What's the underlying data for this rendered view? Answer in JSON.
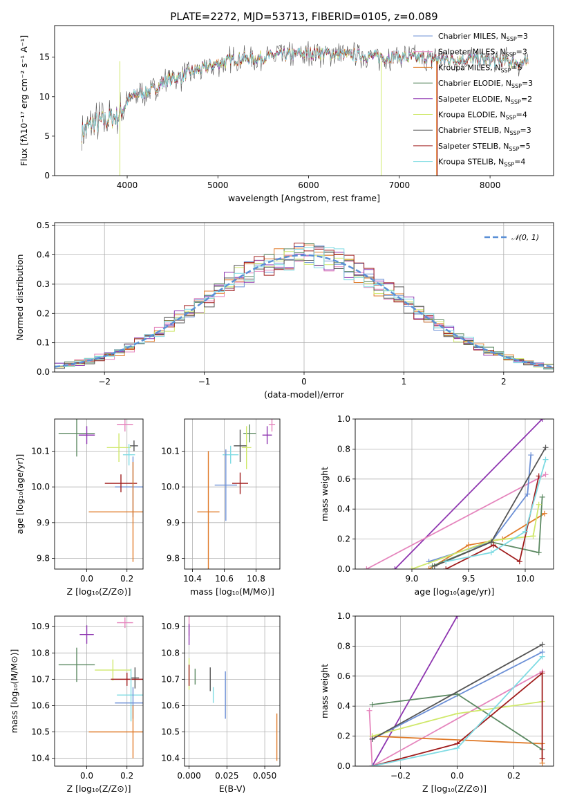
{
  "figure_title": "PLATE=2272, MJD=53713, FIBERID=0105, z=0.089",
  "colors": {
    "c1": "#6b8fd6",
    "c2": "#e585bd",
    "c3": "#e07b2a",
    "c4": "#5d8a63",
    "c5": "#8e35b0",
    "c6": "#cfe86a",
    "c7": "#555555",
    "c8": "#a01c1c",
    "c9": "#7fdbe3",
    "grid": "#b0b0b0",
    "gauss": "#5a8fd6"
  },
  "chart_data": [
    {
      "id": "spectrum",
      "type": "line",
      "title": "PLATE=2272, MJD=53713, FIBERID=0105, z=0.089",
      "xlabel": "wavelength [Angstrom, rest frame]",
      "ylabel": "Flux [fλ10⁻¹⁷ erg cm⁻² s⁻¹ A⁻¹]",
      "xlim": [
        3200,
        8700
      ],
      "ylim": [
        0,
        19
      ],
      "xticks": [
        4000,
        5000,
        6000,
        7000,
        8000
      ],
      "yticks": [
        0,
        5,
        10,
        15
      ],
      "grid": false,
      "legend_position": "top-right",
      "continuum": {
        "x": [
          3500,
          3600,
          3700,
          3800,
          3900,
          4000,
          4100,
          4200,
          4300,
          4400,
          4500,
          4600,
          4700,
          4800,
          4900,
          5000,
          5200,
          5400,
          5600,
          5800,
          6000,
          6200,
          6400,
          6600,
          6800,
          7000,
          7200,
          7400,
          7600,
          7800,
          8000,
          8200,
          8400
        ],
        "y": [
          5.5,
          6.5,
          6.8,
          7.2,
          7.5,
          9.5,
          10.3,
          10.6,
          11.0,
          11.8,
          12.3,
          12.5,
          13.2,
          13.4,
          13.8,
          14.2,
          14.8,
          14.8,
          15.2,
          15.3,
          15.5,
          15.5,
          15.3,
          15.2,
          15.0,
          15.0,
          14.9,
          14.8,
          14.7,
          14.8,
          14.6,
          14.5,
          14.2
        ]
      },
      "series": [
        {
          "name": "Chabrier MILES",
          "nssp": "3",
          "color": "c1"
        },
        {
          "name": "Salpeter MILES",
          "nssp": "3",
          "color": "c2"
        },
        {
          "name": "Kroupa MILES",
          "nssp": "5",
          "color": "c3"
        },
        {
          "name": "Chabrier ELODIE",
          "nssp": "3",
          "color": "c4"
        },
        {
          "name": "Salpeter ELODIE",
          "nssp": "2",
          "color": "c5"
        },
        {
          "name": "Kroupa ELODIE",
          "nssp": "4",
          "color": "c6"
        },
        {
          "name": "Chabrier STELIB",
          "nssp": "3",
          "color": "c7"
        },
        {
          "name": "Salpeter STELIB",
          "nssp": "5",
          "color": "c8"
        },
        {
          "name": "Kroupa STELIB",
          "nssp": "4",
          "color": "c9"
        }
      ]
    },
    {
      "id": "hist",
      "type": "line",
      "xlabel": "(data-model)/error",
      "ylabel": "Normed distribution",
      "xlim": [
        -2.5,
        2.5
      ],
      "ylim": [
        0,
        0.51
      ],
      "xticks": [
        -2,
        -1,
        0,
        1,
        2
      ],
      "yticks": [
        0.0,
        0.1,
        0.2,
        0.3,
        0.4,
        0.5
      ],
      "grid": true,
      "legend_position": "top-right",
      "legend_label": "𝒩(0, 1)",
      "gauss": {
        "mu": 0,
        "sigma": 1
      }
    },
    {
      "id": "age_Z",
      "type": "scatter",
      "xlabel": "Z [log₁₀(Z/Z⊙)]",
      "ylabel": "age  [log₁₀(age/yr)]",
      "xlim": [
        -0.16,
        0.28
      ],
      "ylim": [
        9.77,
        10.19
      ],
      "xticks": [
        0.0,
        0.2
      ],
      "yticks": [
        9.8,
        9.9,
        10.0,
        10.1
      ],
      "grid": true,
      "points": [
        {
          "color": "c4",
          "x": -0.05,
          "y": 10.15,
          "xerr": 0.09,
          "yerr": 0.065
        },
        {
          "color": "c5",
          "x": 0.0,
          "y": 10.145,
          "xerr": 0.04,
          "yerr": 0.025
        },
        {
          "color": "c2",
          "x": 0.19,
          "y": 10.175,
          "xerr": 0.04,
          "yerr": 0.02
        },
        {
          "color": "c6",
          "x": 0.16,
          "y": 10.11,
          "xerr": 0.06,
          "yerr": 0.04
        },
        {
          "color": "c9",
          "x": 0.21,
          "y": 10.09,
          "xerr": 0.03,
          "yerr": 0.03
        },
        {
          "color": "c7",
          "x": 0.235,
          "y": 10.115,
          "xerr": 0.02,
          "yerr": 0.015
        },
        {
          "color": "c1",
          "x": 0.23,
          "y": 10.0,
          "xerr": 0.09,
          "yerr": 0.085
        },
        {
          "color": "c8",
          "x": 0.17,
          "y": 10.01,
          "xerr": 0.08,
          "yerr": 0.025
        },
        {
          "color": "c3",
          "x": 0.23,
          "y": 9.93,
          "xerr": 0.22,
          "yerr": 0.14
        }
      ]
    },
    {
      "id": "age_mass",
      "type": "scatter",
      "xlabel": "mass [log₁₀(M/M⊙)]",
      "ylabel": "",
      "xlim": [
        10.35,
        10.95
      ],
      "ylim": [
        9.77,
        10.19
      ],
      "xticks": [
        10.4,
        10.6,
        10.8
      ],
      "yticks": [
        9.8,
        9.9,
        10.0,
        10.1
      ],
      "grid": true,
      "points": [
        {
          "color": "c2",
          "x": 10.9,
          "y": 10.175,
          "xerr": 0.02,
          "yerr": 0.02
        },
        {
          "color": "c5",
          "x": 10.87,
          "y": 10.145,
          "xerr": 0.03,
          "yerr": 0.025
        },
        {
          "color": "c4",
          "x": 10.76,
          "y": 10.15,
          "xerr": 0.04,
          "yerr": 0.025
        },
        {
          "color": "c6",
          "x": 10.74,
          "y": 10.11,
          "xerr": 0.03,
          "yerr": 0.06
        },
        {
          "color": "c9",
          "x": 10.64,
          "y": 10.09,
          "xerr": 0.05,
          "yerr": 0.025
        },
        {
          "color": "c7",
          "x": 10.7,
          "y": 10.115,
          "xerr": 0.04,
          "yerr": 0.045
        },
        {
          "color": "c1",
          "x": 10.61,
          "y": 10.005,
          "xerr": 0.07,
          "yerr": 0.1
        },
        {
          "color": "c8",
          "x": 10.7,
          "y": 10.01,
          "xerr": 0.05,
          "yerr": 0.03
        },
        {
          "color": "c3",
          "x": 10.5,
          "y": 9.93,
          "xerr": 0.07,
          "yerr": 0.17
        }
      ]
    },
    {
      "id": "weight_age",
      "type": "line",
      "xlabel": "age  [log₁₀(age/yr)]",
      "ylabel": "mass weight",
      "xlim": [
        8.5,
        10.25
      ],
      "ylim": [
        0,
        1
      ],
      "xticks": [
        9.0,
        9.5,
        10.0
      ],
      "yticks": [
        0.0,
        0.2,
        0.4,
        0.6,
        0.8,
        1.0
      ],
      "grid": true,
      "series": [
        {
          "color": "c5",
          "x": [
            8.85,
            10.15
          ],
          "y": [
            0.0,
            1.0
          ]
        },
        {
          "color": "c2",
          "x": [
            8.6,
            10.18
          ],
          "y": [
            0.0,
            0.63
          ]
        },
        {
          "color": "c1",
          "x": [
            9.15,
            9.7,
            10.02,
            10.05
          ],
          "y": [
            0.05,
            0.18,
            0.5,
            0.76
          ]
        },
        {
          "color": "c3",
          "x": [
            9.15,
            9.5,
            9.8,
            10.17
          ],
          "y": [
            0.0,
            0.16,
            0.2,
            0.37
          ]
        },
        {
          "color": "c4",
          "x": [
            9.18,
            9.7,
            10.12,
            10.15
          ],
          "y": [
            0.02,
            0.18,
            0.11,
            0.48
          ]
        },
        {
          "color": "c6",
          "x": [
            9.0,
            9.7,
            10.07,
            10.12
          ],
          "y": [
            0.0,
            0.19,
            0.22,
            0.43
          ]
        },
        {
          "color": "c7",
          "x": [
            9.2,
            9.7,
            10.18
          ],
          "y": [
            0.02,
            0.18,
            0.81
          ]
        },
        {
          "color": "c8",
          "x": [
            9.3,
            9.72,
            9.95,
            10.12
          ],
          "y": [
            0.0,
            0.16,
            0.05,
            0.62
          ]
        },
        {
          "color": "c9",
          "x": [
            9.3,
            9.7,
            10.0,
            10.18
          ],
          "y": [
            0.05,
            0.11,
            0.25,
            0.73
          ]
        }
      ]
    },
    {
      "id": "mass_Z",
      "type": "scatter",
      "xlabel": "Z [log₁₀(Z/Z⊙)]",
      "ylabel": "mass [log₁₀(M/M⊙)]",
      "xlim": [
        -0.16,
        0.28
      ],
      "ylim": [
        10.37,
        10.94
      ],
      "xticks": [
        0.0,
        0.2
      ],
      "yticks": [
        10.4,
        10.5,
        10.6,
        10.7,
        10.8,
        10.9
      ],
      "grid": true,
      "points": [
        {
          "color": "c2",
          "x": 0.19,
          "y": 10.915,
          "xerr": 0.04,
          "yerr": 0.02
        },
        {
          "color": "c5",
          "x": 0.0,
          "y": 10.87,
          "xerr": 0.035,
          "yerr": 0.035
        },
        {
          "color": "c4",
          "x": -0.05,
          "y": 10.755,
          "xerr": 0.09,
          "yerr": 0.065
        },
        {
          "color": "c6",
          "x": 0.13,
          "y": 10.735,
          "xerr": 0.09,
          "yerr": 0.04
        },
        {
          "color": "c7",
          "x": 0.24,
          "y": 10.705,
          "xerr": 0.02,
          "yerr": 0.04
        },
        {
          "color": "c8",
          "x": 0.2,
          "y": 10.7,
          "xerr": 0.08,
          "yerr": 0.025
        },
        {
          "color": "c9",
          "x": 0.22,
          "y": 10.64,
          "xerr": 0.07,
          "yerr": 0.1
        },
        {
          "color": "c1",
          "x": 0.23,
          "y": 10.61,
          "xerr": 0.09,
          "yerr": 0.06
        },
        {
          "color": "c3",
          "x": 0.23,
          "y": 10.5,
          "xerr": 0.22,
          "yerr": 0.1
        }
      ]
    },
    {
      "id": "mass_ebv",
      "type": "scatter",
      "xlabel": "E(B-V)",
      "ylabel": "",
      "xlim": [
        -0.003,
        0.06
      ],
      "ylim": [
        10.37,
        10.94
      ],
      "xticks": [
        0.0,
        0.025,
        0.05
      ],
      "xticklabels": [
        "0.000",
        "0.025",
        "0.050"
      ],
      "yticks": [
        10.4,
        10.5,
        10.6,
        10.7,
        10.8,
        10.9
      ],
      "grid": true,
      "points": [
        {
          "color": "c2",
          "x": 0.0,
          "y": 10.905,
          "xerr": 0,
          "yerr": 0.04
        },
        {
          "color": "c5",
          "x": 0.0,
          "y": 10.87,
          "xerr": 0,
          "yerr": 0.04
        },
        {
          "color": "c6",
          "x": 0.0,
          "y": 10.72,
          "xerr": 0,
          "yerr": 0.06
        },
        {
          "color": "c8",
          "x": 0.0,
          "y": 10.715,
          "xerr": 0,
          "yerr": 0.04
        },
        {
          "color": "c4",
          "x": 0.004,
          "y": 10.71,
          "xerr": 0,
          "yerr": 0.03
        },
        {
          "color": "c7",
          "x": 0.014,
          "y": 10.7,
          "xerr": 0,
          "yerr": 0.045
        },
        {
          "color": "c9",
          "x": 0.016,
          "y": 10.64,
          "xerr": 0,
          "yerr": 0.03
        },
        {
          "color": "c1",
          "x": 0.024,
          "y": 10.64,
          "xerr": 0,
          "yerr": 0.09
        },
        {
          "color": "c3",
          "x": 0.058,
          "y": 10.48,
          "xerr": 0,
          "yerr": 0.09
        }
      ]
    },
    {
      "id": "weight_Z",
      "type": "line",
      "xlabel": "Z [log₁₀(Z/Z⊙)]",
      "ylabel": "mass weight",
      "xlim": [
        -0.36,
        0.34
      ],
      "ylim": [
        0,
        1
      ],
      "xticks": [
        -0.2,
        0.0,
        0.2
      ],
      "yticks": [
        0.0,
        0.2,
        0.4,
        0.6,
        0.8,
        1.0
      ],
      "grid": true,
      "series": [
        {
          "color": "c5",
          "x": [
            -0.3,
            0.0
          ],
          "y": [
            0.0,
            1.0
          ]
        },
        {
          "color": "c2",
          "x": [
            -0.31,
            -0.3,
            0.3
          ],
          "y": [
            0.37,
            0.0,
            0.63
          ]
        },
        {
          "color": "c1",
          "x": [
            -0.3,
            0.3
          ],
          "y": [
            0.18,
            0.76
          ]
        },
        {
          "color": "c3",
          "x": [
            -0.3,
            0.3,
            0.3
          ],
          "y": [
            0.2,
            0.15,
            0.02
          ]
        },
        {
          "color": "c4",
          "x": [
            -0.3,
            0.0,
            0.3
          ],
          "y": [
            0.41,
            0.48,
            0.11
          ]
        },
        {
          "color": "c6",
          "x": [
            -0.3,
            0.0,
            0.3
          ],
          "y": [
            0.2,
            0.35,
            0.43
          ]
        },
        {
          "color": "c7",
          "x": [
            -0.3,
            0.3
          ],
          "y": [
            0.18,
            0.81
          ]
        },
        {
          "color": "c8",
          "x": [
            -0.3,
            0.0,
            0.3,
            0.3
          ],
          "y": [
            0.0,
            0.15,
            0.62,
            0.05
          ]
        },
        {
          "color": "c9",
          "x": [
            -0.3,
            0.0,
            0.3
          ],
          "y": [
            0.0,
            0.12,
            0.73
          ]
        }
      ]
    }
  ]
}
